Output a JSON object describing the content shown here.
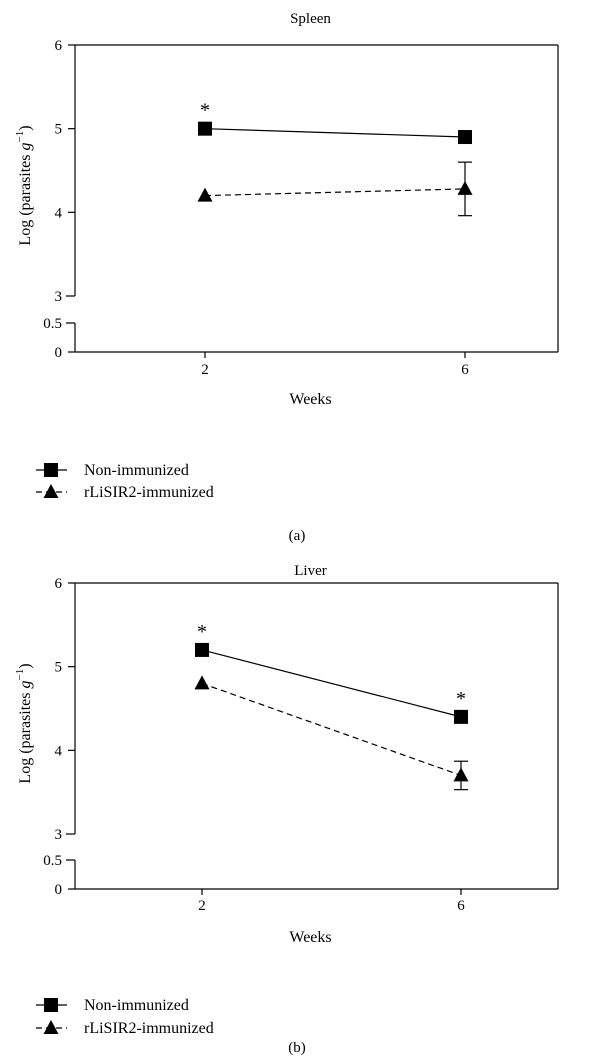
{
  "chart_data": [
    {
      "type": "line",
      "panel_label": "(a)",
      "title": "Spleen",
      "xlabel": "Weeks",
      "ylabel_prefix": "Log (parasites ",
      "ylabel_unit": "g",
      "ylabel_exp": "−1",
      "ylabel_suffix": ")",
      "x_ticks": [
        "2",
        "6"
      ],
      "y_ticks_lower": [
        "0",
        "0.5"
      ],
      "y_ticks_upper": [
        "3",
        "4",
        "5",
        "6"
      ],
      "y_axis_break": true,
      "x": [
        2,
        6
      ],
      "series": [
        {
          "name": "Non-immunized",
          "marker": "square",
          "line": "solid",
          "values": [
            5.0,
            4.9
          ],
          "error": [
            0,
            0
          ],
          "significance": [
            "*",
            ""
          ]
        },
        {
          "name": "rLiSIR2-immunized",
          "marker": "triangle",
          "line": "dashed",
          "values": [
            4.2,
            4.28
          ],
          "error": [
            0,
            0.32
          ],
          "significance": [
            "",
            ""
          ]
        }
      ]
    },
    {
      "type": "line",
      "panel_label": "(b)",
      "title": "Liver",
      "xlabel": "Weeks",
      "ylabel_prefix": "Log (parasites ",
      "ylabel_unit": "g",
      "ylabel_exp": "−1",
      "ylabel_suffix": ")",
      "x_ticks": [
        "2",
        "6"
      ],
      "y_ticks_lower": [
        "0",
        "0.5"
      ],
      "y_ticks_upper": [
        "3",
        "4",
        "5",
        "6"
      ],
      "y_axis_break": true,
      "x": [
        2,
        6
      ],
      "series": [
        {
          "name": "Non-immunized",
          "marker": "square",
          "line": "solid",
          "values": [
            5.2,
            4.4
          ],
          "error": [
            0,
            0
          ],
          "significance": [
            "*",
            "*"
          ]
        },
        {
          "name": "rLiSIR2-immunized",
          "marker": "triangle",
          "line": "dashed",
          "values": [
            4.8,
            3.7
          ],
          "error": [
            0,
            0.17
          ],
          "significance": [
            "",
            ""
          ]
        }
      ]
    }
  ]
}
